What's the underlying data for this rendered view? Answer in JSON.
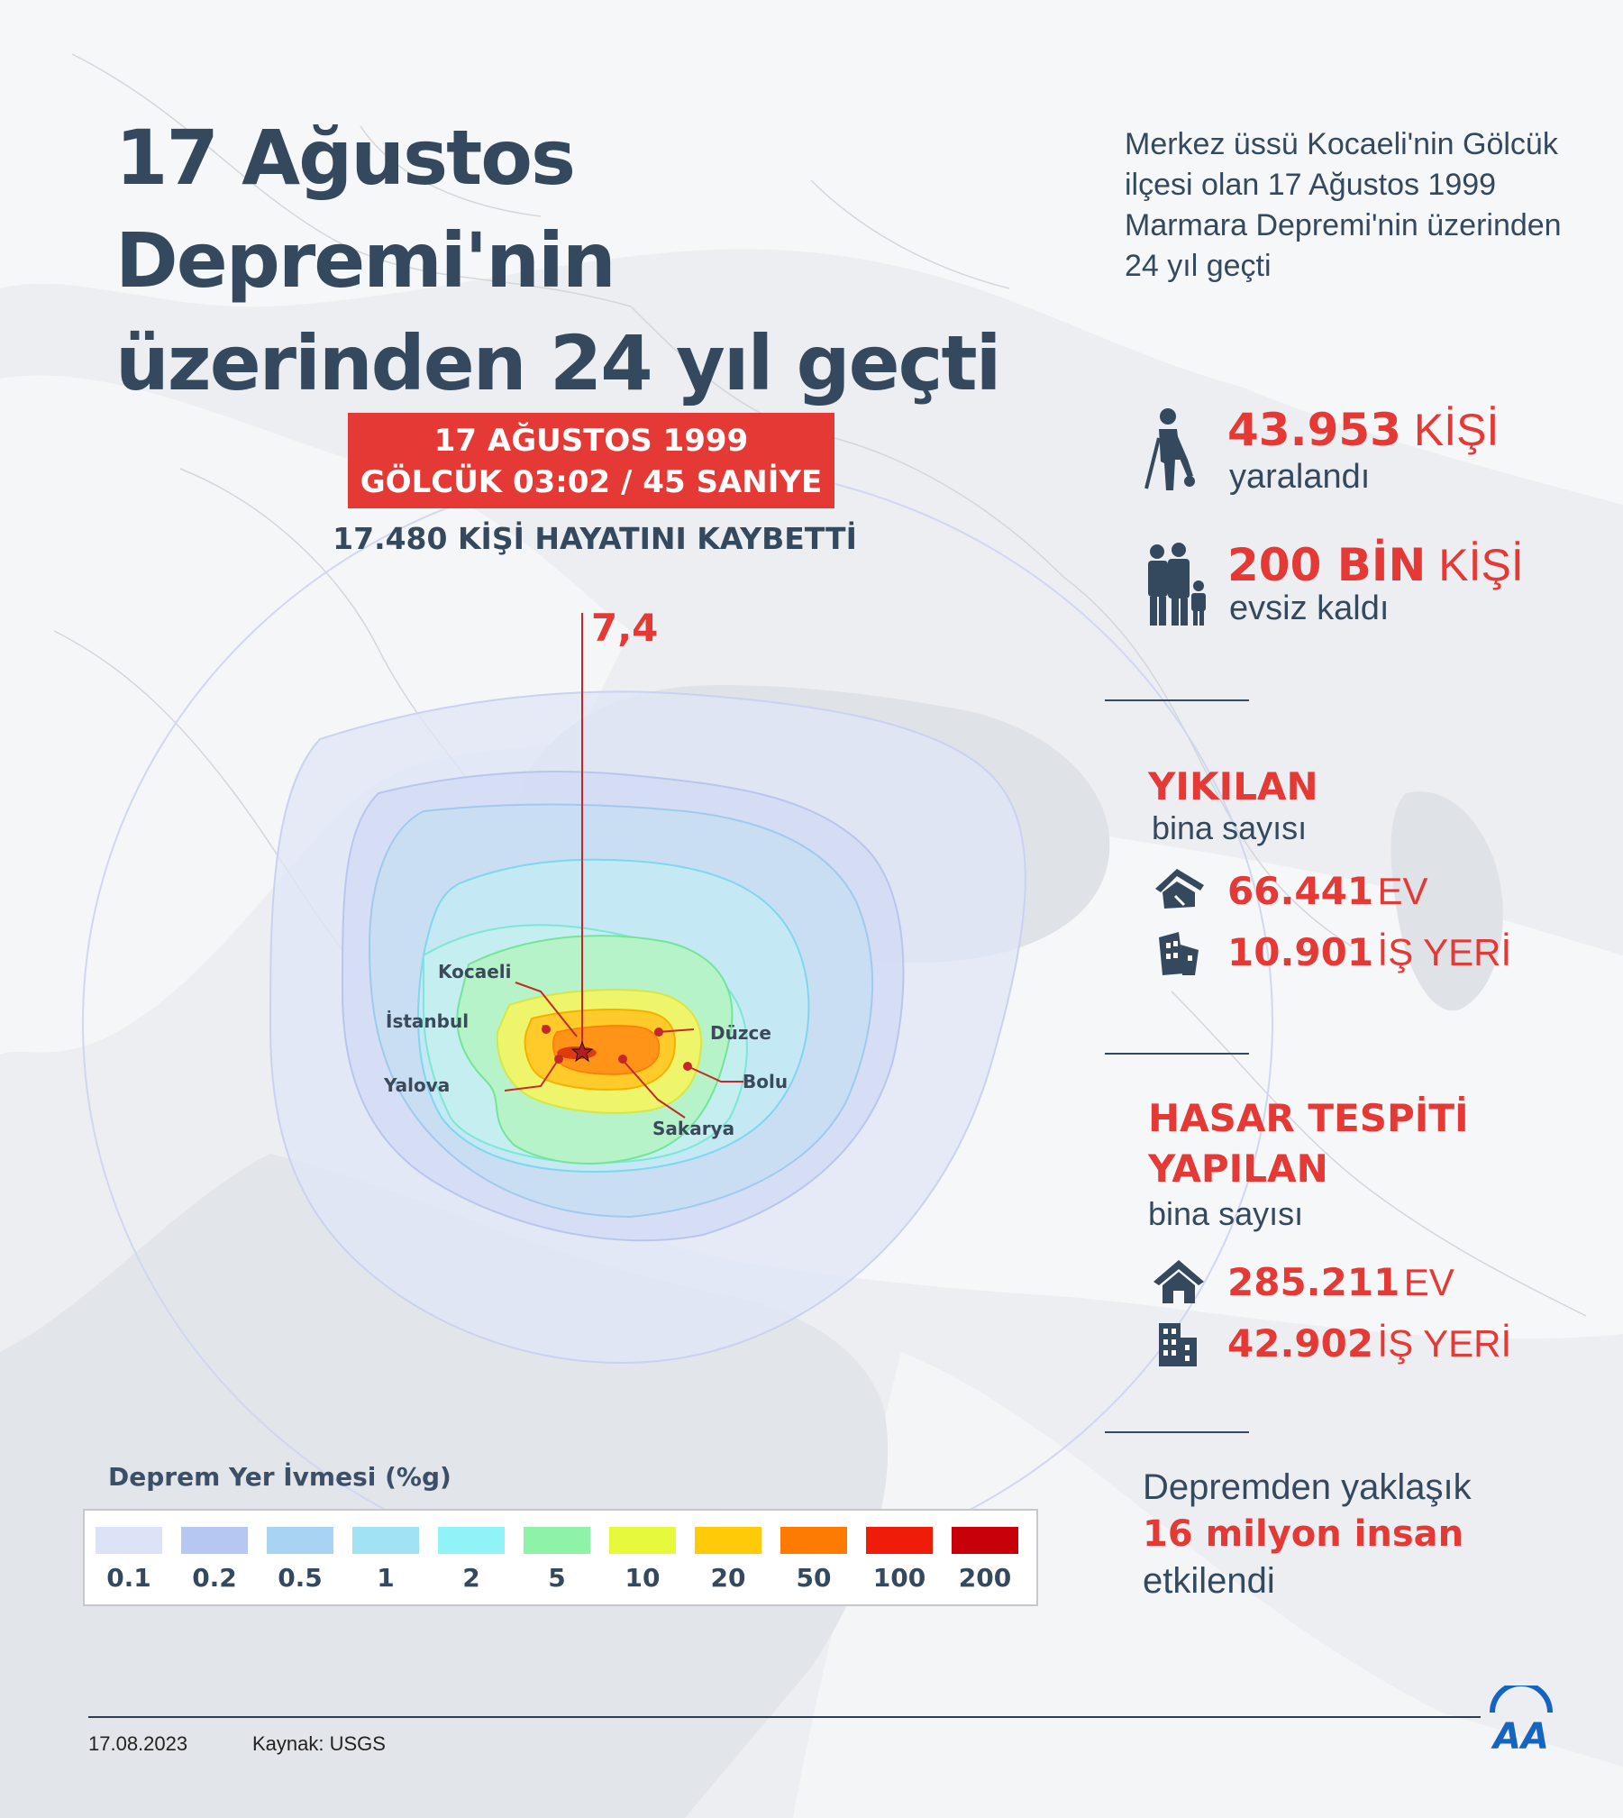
{
  "title": {
    "line1": "17 Ağustos Depremi'nin",
    "line2": "üzerinden 24 yıl geçti"
  },
  "subtitle": "Merkez üssü Kocaeli'nin Gölcük ilçesi olan 17 Ağustos 1999 Marmara Depremi'nin üzerinden 24 yıl geçti",
  "event": {
    "date_line": "17 AĞUSTOS 1999",
    "time_line": "GÖLCÜK 03:02 / 45 SANİYE",
    "deaths": "17.480 KİŞİ HAYATINI KAYBETTİ",
    "magnitude": "7,4"
  },
  "cities": {
    "kocaeli": "Kocaeli",
    "istanbul": "İstanbul",
    "yalova": "Yalova",
    "duzce": "Düzce",
    "bolu": "Bolu",
    "sakarya": "Sakarya"
  },
  "stats": {
    "injured": {
      "number": "43.953",
      "unit": "KİŞİ",
      "label": "yaralandı",
      "icon": "injured-person-icon"
    },
    "homeless": {
      "number": "200 BİN",
      "unit": "KİŞİ",
      "label": "evsiz kaldı",
      "icon": "family-icon"
    }
  },
  "destroyed": {
    "heading": "YIKILAN",
    "sub": "bina sayısı",
    "homes": {
      "number": "66.441",
      "unit": "EV",
      "icon": "collapsed-house-icon"
    },
    "work": {
      "number": "10.901",
      "unit": "İŞ YERİ",
      "icon": "collapsed-building-icon"
    }
  },
  "damaged": {
    "heading1": "HASAR TESPİTİ",
    "heading2": "YAPILAN",
    "sub": "bina sayısı",
    "homes": {
      "number": "285.211",
      "unit": "EV",
      "icon": "house-icon"
    },
    "work": {
      "number": "42.902",
      "unit": "İŞ YERİ",
      "icon": "building-icon"
    }
  },
  "affected": {
    "pre": "Depremden yaklaşık",
    "highlight": "16 milyon insan",
    "post": "etkilendi"
  },
  "legend": {
    "title": "Deprem Yer İvmesi (%g)",
    "items": [
      {
        "label": "0.1",
        "color": "#dde3f7"
      },
      {
        "label": "0.2",
        "color": "#b6c8f2"
      },
      {
        "label": "0.5",
        "color": "#a8d3f2"
      },
      {
        "label": "1",
        "color": "#a2e2f5"
      },
      {
        "label": "2",
        "color": "#8ff3f7"
      },
      {
        "label": "5",
        "color": "#8ef3a8"
      },
      {
        "label": "10",
        "color": "#e6f93a"
      },
      {
        "label": "20",
        "color": "#ffcb08"
      },
      {
        "label": "50",
        "color": "#ff7a00"
      },
      {
        "label": "100",
        "color": "#ee1c08"
      },
      {
        "label": "200",
        "color": "#c8000a"
      }
    ]
  },
  "footer": {
    "date": "17.08.2023",
    "source": "Kaynak: USGS",
    "logo": "AA"
  },
  "colors": {
    "accent": "#e53935",
    "text": "#34495e",
    "logo_blue": "#1565c0"
  }
}
